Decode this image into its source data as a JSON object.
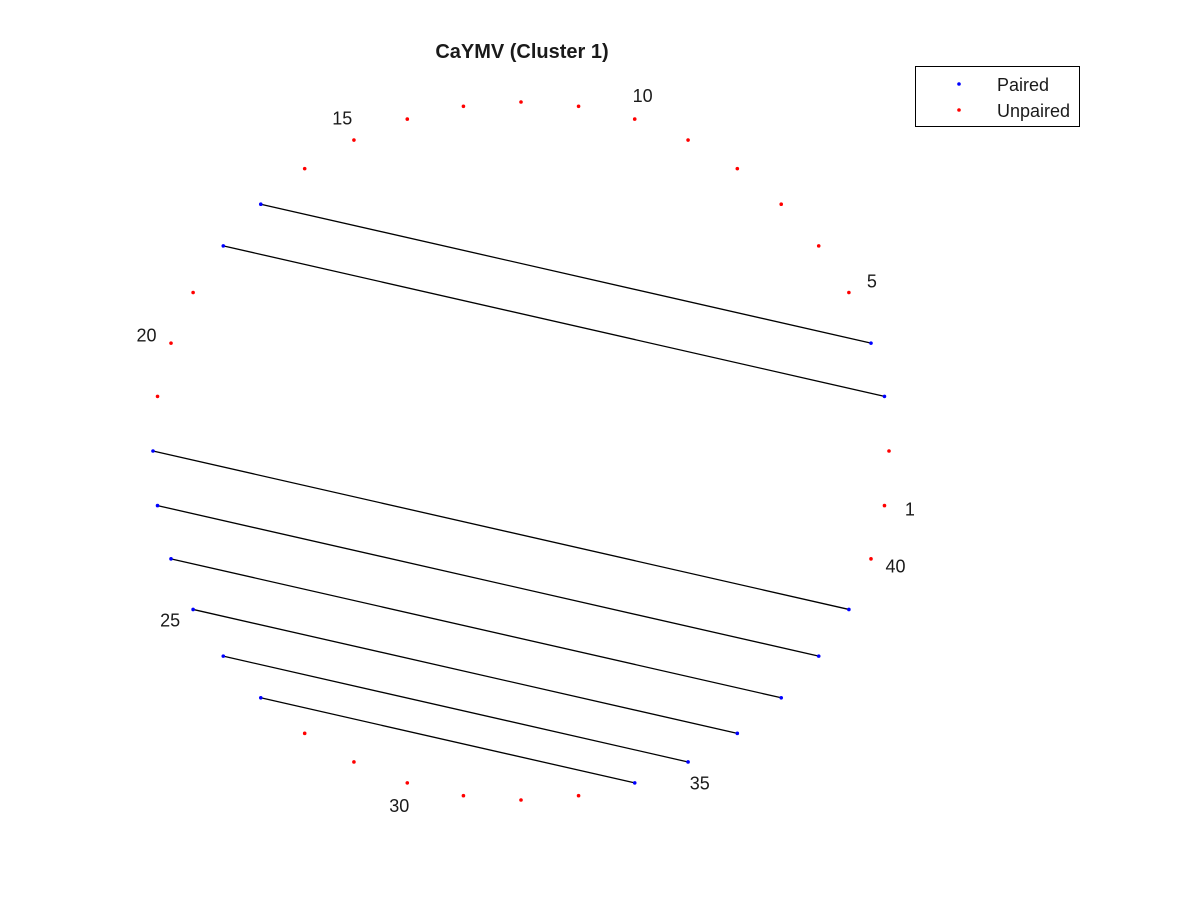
{
  "chart_data": {
    "type": "diagram",
    "title": "CaYMV (Cluster 1)",
    "node_count": 40,
    "labeled_positions": [
      "1",
      "5",
      "10",
      "15",
      "20",
      "25",
      "30",
      "35",
      "40"
    ],
    "pairs": [
      [
        4,
        17
      ],
      [
        3,
        18
      ],
      [
        39,
        22
      ],
      [
        38,
        23
      ],
      [
        37,
        24
      ],
      [
        36,
        25
      ],
      [
        35,
        26
      ],
      [
        34,
        27
      ]
    ],
    "paired_color": "#0000ff",
    "unpaired_color": "#ff0000",
    "arc_color": "#000000",
    "legend": {
      "placement": "top-right",
      "entries": [
        {
          "label": "Paired",
          "color": "#0000ff"
        },
        {
          "label": "Unpaired",
          "color": "#ff0000"
        }
      ]
    }
  }
}
